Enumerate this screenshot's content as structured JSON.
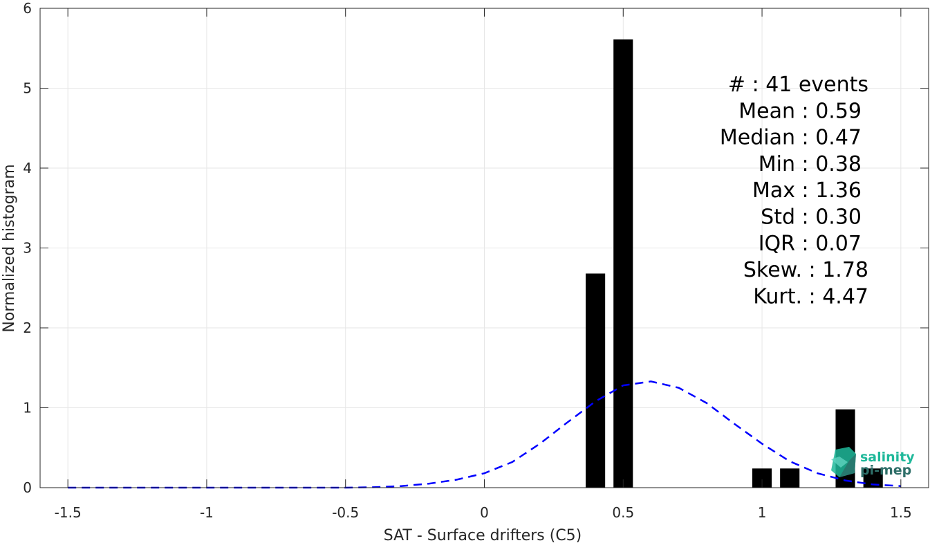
{
  "chart_data": {
    "type": "bar",
    "xlabel": "SAT - Surface drifters (C5)",
    "ylabel": "Normalized histogram",
    "xlim": [
      -1.6,
      1.6
    ],
    "ylim": [
      0,
      6
    ],
    "grid": true,
    "x_ticks": [
      "-1.5",
      "-1",
      "-0.5",
      "0",
      "0.5",
      "1",
      "1.5"
    ],
    "x_tick_values": [
      -1.5,
      -1,
      -0.5,
      0,
      0.5,
      1,
      1.5
    ],
    "y_ticks": [
      "0",
      "1",
      "2",
      "3",
      "4",
      "5",
      "6"
    ],
    "y_tick_values": [
      0,
      1,
      2,
      3,
      4,
      5,
      6
    ],
    "bar_width": 0.07,
    "bars": [
      {
        "x": 0.4,
        "value": 2.68
      },
      {
        "x": 0.5,
        "value": 5.61
      },
      {
        "x": 1.0,
        "value": 0.24
      },
      {
        "x": 1.1,
        "value": 0.24
      },
      {
        "x": 1.3,
        "value": 0.98
      },
      {
        "x": 1.4,
        "value": 0.24
      }
    ],
    "bar_color": "#000000",
    "fit_curve": {
      "style": "dashed",
      "color": "#0000ff",
      "x": [
        -1.5,
        -1.4,
        -1.3,
        -1.2,
        -1.1,
        -1.0,
        -0.9,
        -0.8,
        -0.7,
        -0.6,
        -0.5,
        -0.4,
        -0.3,
        -0.2,
        -0.1,
        0.0,
        0.1,
        0.2,
        0.3,
        0.4,
        0.5,
        0.6,
        0.7,
        0.8,
        0.9,
        1.0,
        1.1,
        1.2,
        1.3,
        1.4,
        1.5
      ],
      "y": [
        0.0,
        0.0,
        0.0,
        0.0,
        0.0,
        0.0,
        0.0,
        0.0,
        0.0,
        0.0,
        0.0,
        0.005,
        0.02,
        0.05,
        0.1,
        0.18,
        0.32,
        0.55,
        0.82,
        1.08,
        1.28,
        1.33,
        1.25,
        1.06,
        0.8,
        0.55,
        0.33,
        0.18,
        0.09,
        0.04,
        0.02
      ]
    },
    "stats": [
      {
        "label": "#  : 41 events",
        "anchor": 1256
      },
      {
        "label": "Mean : 0.59",
        "anchor": 1246
      },
      {
        "label": "Median : 0.47",
        "anchor": 1246
      },
      {
        "label": "Min : 0.38",
        "anchor": 1246
      },
      {
        "label": "Max : 1.36",
        "anchor": 1246
      },
      {
        "label": "Std : 0.30",
        "anchor": 1246
      },
      {
        "label": "IQR : 0.07",
        "anchor": 1246
      },
      {
        "label": "Skew. : 1.78",
        "anchor": 1256
      },
      {
        "label": "Kurt. : 4.47",
        "anchor": 1256
      }
    ]
  },
  "logo": {
    "line1": "salinity",
    "line2": "pi-mep",
    "color1": "#1fb89a",
    "color2": "#2e6e68"
  }
}
